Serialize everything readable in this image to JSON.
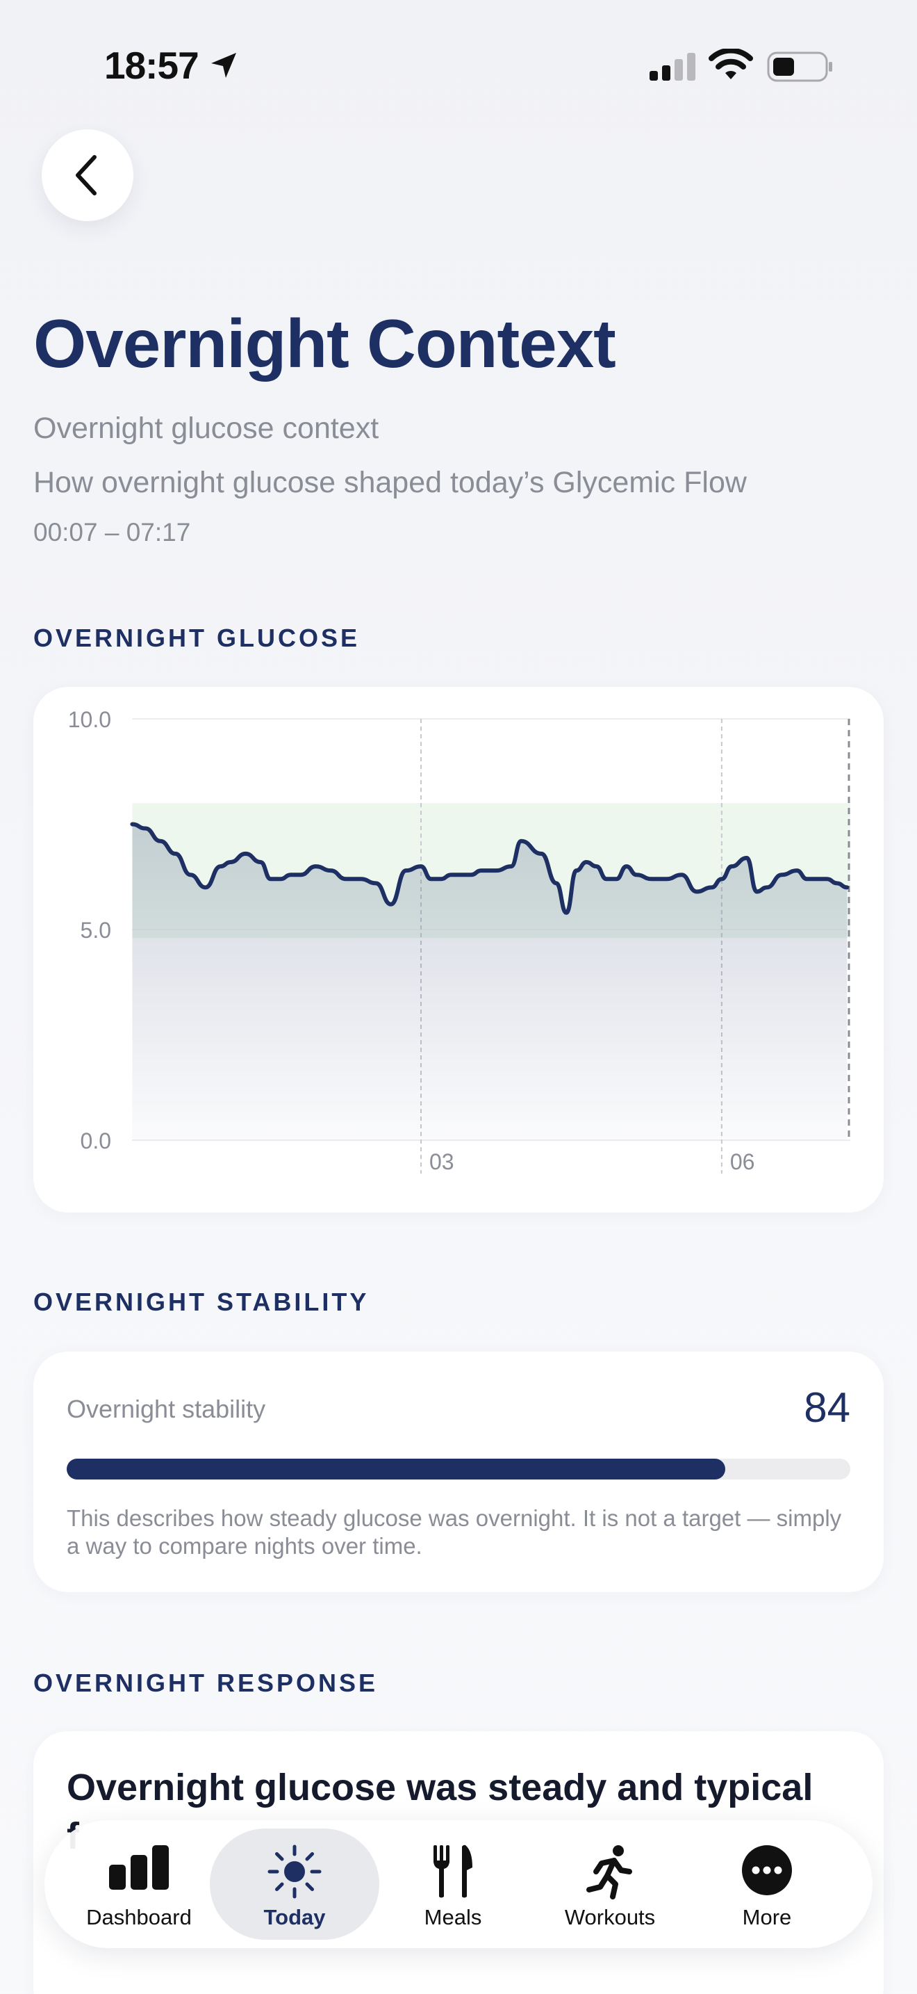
{
  "status_bar": {
    "time": "18:57"
  },
  "header": {
    "title": "Overnight Context",
    "subtitle": "Overnight glucose context",
    "description": "How overnight glucose shaped today’s Glycemic Flow",
    "time_range": "00:07 – 07:17"
  },
  "sections": {
    "glucose": "OVERNIGHT GLUCOSE",
    "stability": "OVERNIGHT STABILITY",
    "response": "OVERNIGHT RESPONSE"
  },
  "chart_data": {
    "type": "area",
    "title": "",
    "xlabel": "",
    "ylabel": "",
    "ylim": [
      0,
      10
    ],
    "y_ticks": [
      "10.0",
      "5.0",
      "0.0"
    ],
    "x_ticks": [
      "03",
      "06"
    ],
    "x_tick_hours": [
      3,
      6
    ],
    "xlim_hours": [
      0.117,
      7.283
    ],
    "target_range": [
      4.8,
      8.0
    ],
    "colors": {
      "line": "#1d2f63",
      "target_band": "#e6f4e7"
    },
    "series": [
      {
        "x": [
          0.12,
          0.25,
          0.4,
          0.55,
          0.7,
          0.85,
          1.0,
          1.1,
          1.25,
          1.4,
          1.5,
          1.6,
          1.7,
          1.8,
          1.95,
          2.1,
          2.25,
          2.4,
          2.55,
          2.7,
          2.85,
          3.0,
          3.1,
          3.2,
          3.3,
          3.4,
          3.5,
          3.6,
          3.75,
          3.9,
          4.0,
          4.2,
          4.35,
          4.45,
          4.55,
          4.65,
          4.75,
          4.85,
          4.95,
          5.05,
          5.15,
          5.3,
          5.45,
          5.6,
          5.75,
          5.9,
          6.0,
          6.1,
          6.25,
          6.35,
          6.45,
          6.6,
          6.75,
          6.85,
          6.95,
          7.05,
          7.15,
          7.25
        ],
        "values": [
          7.5,
          7.4,
          7.1,
          6.8,
          6.3,
          6.0,
          6.5,
          6.6,
          6.8,
          6.6,
          6.2,
          6.2,
          6.3,
          6.3,
          6.5,
          6.4,
          6.2,
          6.2,
          6.1,
          5.6,
          6.4,
          6.5,
          6.2,
          6.2,
          6.3,
          6.3,
          6.3,
          6.4,
          6.4,
          6.5,
          7.1,
          6.8,
          6.1,
          5.4,
          6.4,
          6.6,
          6.5,
          6.2,
          6.2,
          6.5,
          6.3,
          6.2,
          6.2,
          6.3,
          5.9,
          6.0,
          6.2,
          6.5,
          6.7,
          5.9,
          6.0,
          6.3,
          6.4,
          6.2,
          6.2,
          6.2,
          6.1,
          6.0
        ]
      }
    ]
  },
  "stability": {
    "label": "Overnight stability",
    "value": "84",
    "fill_fraction": 0.84,
    "description": "This describes how steady glucose was overnight. It is not a target — simply a way to compare nights over time."
  },
  "response": {
    "title": "Overnight glucose was steady and typical",
    "extra": "f"
  },
  "tabs": [
    {
      "label": "Dashboard",
      "icon": "bar-chart-icon",
      "active": false
    },
    {
      "label": "Today",
      "icon": "sun-icon",
      "active": true
    },
    {
      "label": "Meals",
      "icon": "fork-knife-icon",
      "active": false
    },
    {
      "label": "Workouts",
      "icon": "running-figure-icon",
      "active": false
    },
    {
      "label": "More",
      "icon": "ellipsis-icon",
      "active": false
    }
  ]
}
